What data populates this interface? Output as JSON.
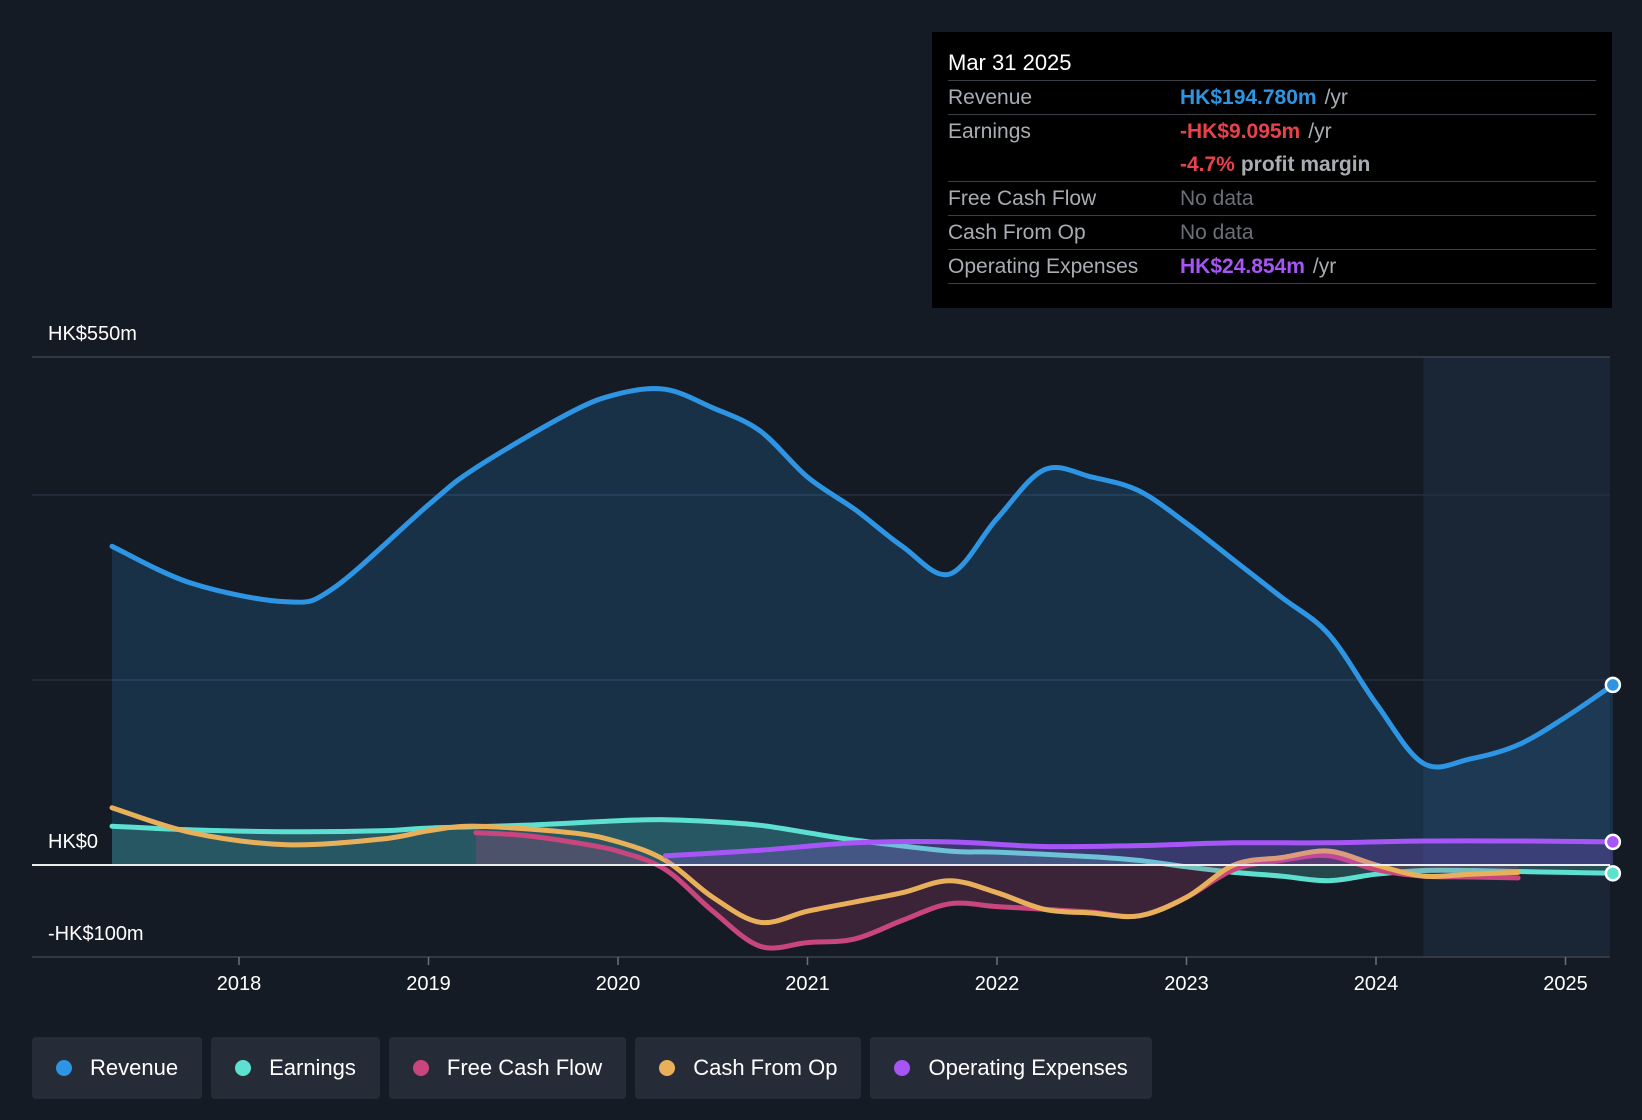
{
  "tooltip": {
    "date": "Mar 31 2025",
    "rows": [
      {
        "label": "Revenue",
        "value": "HK$194.780m",
        "unit": "/yr",
        "color": "#2d95e3"
      },
      {
        "label": "Earnings",
        "value": "-HK$9.095m",
        "unit": "/yr",
        "color": "#e8424b"
      },
      {
        "label": "",
        "value": "-4.7%",
        "unit": "profit margin",
        "color": "#e8424b"
      },
      {
        "label": "Free Cash Flow",
        "value": "No data"
      },
      {
        "label": "Cash From Op",
        "value": "No data"
      },
      {
        "label": "Operating Expenses",
        "value": "HK$24.854m",
        "unit": "/yr",
        "color": "#a855f7"
      }
    ]
  },
  "legend": [
    {
      "label": "Revenue",
      "color": "#2d95e3"
    },
    {
      "label": "Earnings",
      "color": "#5ee0d0"
    },
    {
      "label": "Free Cash Flow",
      "color": "#c8457e"
    },
    {
      "label": "Cash From Op",
      "color": "#e9b05c"
    },
    {
      "label": "Operating Expenses",
      "color": "#a855f7"
    }
  ],
  "chart_data": {
    "type": "line",
    "y_labels": {
      "top": "HK$550m",
      "zero": "HK$0",
      "bottom": "-HK$100m"
    },
    "ylim": [
      -100,
      550
    ],
    "xlim": [
      2017.0,
      2025.25
    ],
    "x_ticks": [
      {
        "value": 2018,
        "label": "2018"
      },
      {
        "value": 2019,
        "label": "2019"
      },
      {
        "value": 2020,
        "label": "2020"
      },
      {
        "value": 2021,
        "label": "2021"
      },
      {
        "value": 2022,
        "label": "2022"
      },
      {
        "value": 2023,
        "label": "2023"
      },
      {
        "value": 2024,
        "label": "2024"
      },
      {
        "value": 2025,
        "label": "2025"
      }
    ],
    "forecast_start": 2024.25,
    "series": [
      {
        "name": "Revenue",
        "color": "#2d95e3",
        "fill": true,
        "end_marker": true,
        "points": [
          [
            2017.33,
            345
          ],
          [
            2017.75,
            305
          ],
          [
            2018.25,
            285
          ],
          [
            2018.5,
            300
          ],
          [
            2019.0,
            390
          ],
          [
            2019.25,
            430
          ],
          [
            2019.75,
            490
          ],
          [
            2020.0,
            510
          ],
          [
            2020.25,
            515
          ],
          [
            2020.5,
            495
          ],
          [
            2020.75,
            470
          ],
          [
            2021.0,
            420
          ],
          [
            2021.25,
            385
          ],
          [
            2021.5,
            345
          ],
          [
            2021.75,
            315
          ],
          [
            2022.0,
            375
          ],
          [
            2022.25,
            428
          ],
          [
            2022.5,
            420
          ],
          [
            2022.75,
            405
          ],
          [
            2023.0,
            370
          ],
          [
            2023.25,
            330
          ],
          [
            2023.5,
            290
          ],
          [
            2023.75,
            250
          ],
          [
            2024.0,
            175
          ],
          [
            2024.25,
            110
          ],
          [
            2024.5,
            115
          ],
          [
            2024.75,
            130
          ],
          [
            2025.0,
            160
          ],
          [
            2025.25,
            195
          ]
        ]
      },
      {
        "name": "Earnings",
        "color": "#5ee0d0",
        "fill": true,
        "end_marker": true,
        "points": [
          [
            2017.33,
            42
          ],
          [
            2017.75,
            38
          ],
          [
            2018.25,
            36
          ],
          [
            2018.75,
            37
          ],
          [
            2019.0,
            40
          ],
          [
            2019.5,
            43
          ],
          [
            2020.0,
            48
          ],
          [
            2020.25,
            49
          ],
          [
            2020.5,
            47
          ],
          [
            2020.75,
            43
          ],
          [
            2021.0,
            35
          ],
          [
            2021.25,
            27
          ],
          [
            2021.75,
            15
          ],
          [
            2022.0,
            14
          ],
          [
            2022.5,
            9
          ],
          [
            2022.75,
            5
          ],
          [
            2023.0,
            -2
          ],
          [
            2023.25,
            -8
          ],
          [
            2023.5,
            -12
          ],
          [
            2023.75,
            -17
          ],
          [
            2024.0,
            -10
          ],
          [
            2024.25,
            -6
          ],
          [
            2024.5,
            -6
          ],
          [
            2024.75,
            -7
          ],
          [
            2025.0,
            -8
          ],
          [
            2025.25,
            -9
          ]
        ]
      },
      {
        "name": "Free Cash Flow",
        "color": "#c8457e",
        "fill": true,
        "end_marker": false,
        "points": [
          [
            2019.25,
            35
          ],
          [
            2019.5,
            32
          ],
          [
            2019.75,
            25
          ],
          [
            2020.0,
            15
          ],
          [
            2020.25,
            -5
          ],
          [
            2020.5,
            -50
          ],
          [
            2020.75,
            -88
          ],
          [
            2021.0,
            -84
          ],
          [
            2021.25,
            -80
          ],
          [
            2021.5,
            -60
          ],
          [
            2021.75,
            -42
          ],
          [
            2022.0,
            -45
          ],
          [
            2022.25,
            -48
          ],
          [
            2022.5,
            -51
          ],
          [
            2022.75,
            -55
          ],
          [
            2023.0,
            -35
          ],
          [
            2023.25,
            -5
          ],
          [
            2023.5,
            5
          ],
          [
            2023.75,
            10
          ],
          [
            2024.0,
            -5
          ],
          [
            2024.25,
            -12
          ],
          [
            2024.5,
            -13
          ],
          [
            2024.75,
            -14
          ]
        ]
      },
      {
        "name": "Cash From Op",
        "color": "#e9b05c",
        "fill": false,
        "end_marker": false,
        "points": [
          [
            2017.33,
            62
          ],
          [
            2017.75,
            35
          ],
          [
            2018.25,
            22
          ],
          [
            2018.75,
            28
          ],
          [
            2019.0,
            37
          ],
          [
            2019.25,
            42
          ],
          [
            2019.75,
            35
          ],
          [
            2020.0,
            25
          ],
          [
            2020.25,
            5
          ],
          [
            2020.5,
            -35
          ],
          [
            2020.75,
            -62
          ],
          [
            2021.0,
            -50
          ],
          [
            2021.25,
            -40
          ],
          [
            2021.5,
            -30
          ],
          [
            2021.75,
            -17
          ],
          [
            2022.0,
            -30
          ],
          [
            2022.25,
            -48
          ],
          [
            2022.5,
            -52
          ],
          [
            2022.75,
            -55
          ],
          [
            2023.0,
            -35
          ],
          [
            2023.25,
            0
          ],
          [
            2023.5,
            8
          ],
          [
            2023.75,
            15
          ],
          [
            2024.0,
            0
          ],
          [
            2024.25,
            -12
          ],
          [
            2024.5,
            -10
          ],
          [
            2024.75,
            -8
          ]
        ]
      },
      {
        "name": "Operating Expenses",
        "color": "#a855f7",
        "fill": true,
        "end_marker": true,
        "points": [
          [
            2020.25,
            10
          ],
          [
            2020.75,
            16
          ],
          [
            2021.25,
            24
          ],
          [
            2021.75,
            25
          ],
          [
            2022.25,
            20
          ],
          [
            2022.75,
            21
          ],
          [
            2023.25,
            24
          ],
          [
            2023.75,
            24
          ],
          [
            2024.25,
            26
          ],
          [
            2024.75,
            26
          ],
          [
            2025.25,
            25
          ]
        ]
      }
    ]
  }
}
